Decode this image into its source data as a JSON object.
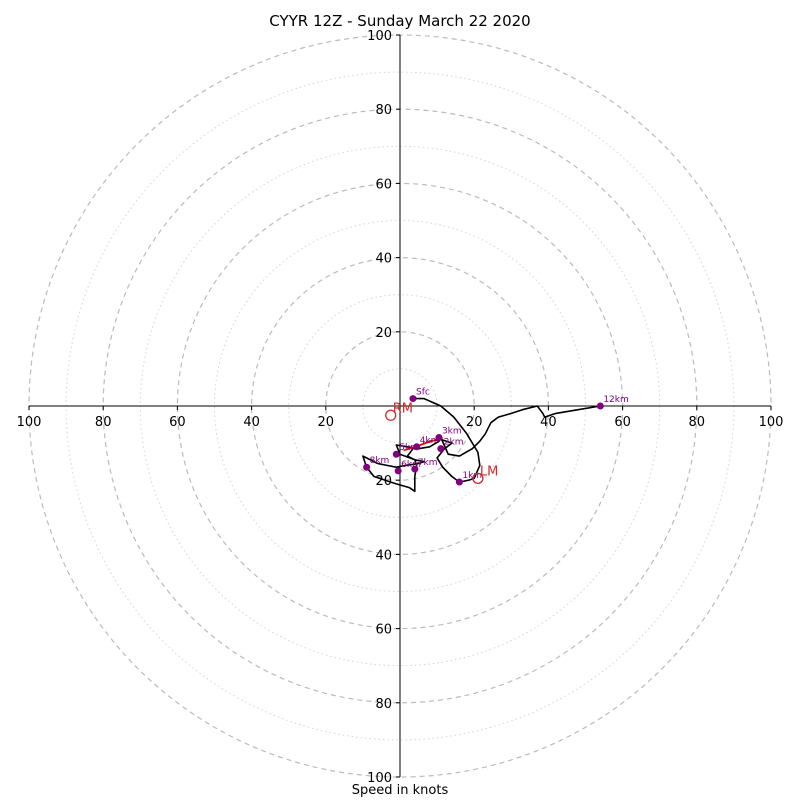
{
  "chart_data": {
    "type": "hodograph",
    "title": "CYYR 12Z - Sunday March 22 2020",
    "xlabel": "Speed in knots",
    "ring_max": 100,
    "ring_step": 10,
    "tick_labels_x": [
      "100",
      "80",
      "60",
      "40",
      "20",
      "20",
      "40",
      "60",
      "80",
      "100"
    ],
    "tick_labels_x_values": [
      -100,
      -80,
      -60,
      -40,
      -20,
      20,
      40,
      60,
      80,
      100
    ],
    "tick_labels_y": [
      "100",
      "80",
      "60",
      "40",
      "20",
      "20",
      "40",
      "60",
      "80",
      "100"
    ],
    "tick_labels_y_values": [
      100,
      80,
      60,
      40,
      20,
      -20,
      -40,
      -60,
      -80,
      -100
    ],
    "trace_uv": [
      [
        3.5,
        2.0
      ],
      [
        6.5,
        2.0
      ],
      [
        11.0,
        0.0
      ],
      [
        14.5,
        -3.0
      ],
      [
        18.0,
        -7.5
      ],
      [
        21.0,
        -12.5
      ],
      [
        21.5,
        -16.0
      ],
      [
        20.0,
        -19.5
      ],
      [
        18.5,
        -20.0
      ],
      [
        16.0,
        -20.5
      ],
      [
        14.0,
        -19.0
      ],
      [
        11.5,
        -16.5
      ],
      [
        10.0,
        -14.0
      ],
      [
        12.0,
        -11.5
      ],
      [
        14.0,
        -10.0
      ],
      [
        11.0,
        -9.0
      ],
      [
        8.0,
        -9.5
      ],
      [
        5.5,
        -10.5
      ],
      [
        3.5,
        -11.5
      ],
      [
        2.0,
        -13.5
      ],
      [
        4.0,
        -14.5
      ],
      [
        6.5,
        -15.0
      ],
      [
        5.0,
        -15.5
      ],
      [
        1.5,
        -16.0
      ],
      [
        -1.0,
        -16.5
      ],
      [
        -3.5,
        -16.0
      ],
      [
        -6.0,
        -15.5
      ],
      [
        -10.0,
        -13.5
      ],
      [
        -9.0,
        -16.5
      ],
      [
        -7.0,
        -19.0
      ],
      [
        -4.0,
        -20.0
      ],
      [
        -1.0,
        -21.0
      ],
      [
        2.5,
        -22.0
      ],
      [
        4.0,
        -23.0
      ],
      [
        4.0,
        -19.0
      ],
      [
        4.5,
        -16.0
      ],
      [
        4.0,
        -14.5
      ],
      [
        0.0,
        -13.0
      ],
      [
        -1.0,
        -10.5
      ],
      [
        2.0,
        -11.0
      ],
      [
        5.0,
        -11.5
      ],
      [
        8.0,
        -11.0
      ],
      [
        10.5,
        -9.5
      ],
      [
        11.0,
        -8.5
      ],
      [
        13.0,
        -13.0
      ],
      [
        16.0,
        -13.5
      ],
      [
        19.5,
        -11.5
      ],
      [
        21.5,
        -9.5
      ],
      [
        23.0,
        -7.5
      ],
      [
        24.5,
        -4.5
      ],
      [
        26.5,
        -3.0
      ],
      [
        30.0,
        -2.0
      ],
      [
        33.0,
        -1.0
      ],
      [
        37.0,
        0.0
      ],
      [
        38.5,
        -2.0
      ],
      [
        39.0,
        -3.0
      ],
      [
        42.0,
        -2.0
      ],
      [
        48.0,
        -1.0
      ],
      [
        54.0,
        0.0
      ]
    ],
    "storm_motion_uv": [
      [
        1.0,
        -12.0
      ],
      [
        11.5,
        -8.5
      ]
    ],
    "height_labels": [
      {
        "label": "Sfc",
        "u": 3.5,
        "v": 2.0
      },
      {
        "label": "1km",
        "u": 16.0,
        "v": -20.5
      },
      {
        "label": "2km",
        "u": 11.0,
        "v": -11.5
      },
      {
        "label": "3km",
        "u": 10.5,
        "v": -8.5
      },
      {
        "label": "4km",
        "u": 4.5,
        "v": -11.0
      },
      {
        "label": "5km",
        "u": -1.0,
        "v": -13.0
      },
      {
        "label": "6km",
        "u": -0.5,
        "v": -17.5
      },
      {
        "label": "7km",
        "u": 4.0,
        "v": -17.0
      },
      {
        "label": "8km",
        "u": -9.0,
        "v": -16.5
      },
      {
        "label": "12km",
        "u": 54.0,
        "v": 0.0
      }
    ],
    "bunkers": [
      {
        "label": "RM",
        "u": -2.5,
        "v": -2.5
      },
      {
        "label": "LM",
        "u": 21.0,
        "v": -19.5
      }
    ]
  },
  "colors": {
    "trace": "#000000",
    "storm_motion": "#ff0000",
    "height_marker": "#800080",
    "bunkers": "#d62728",
    "ring": "#bbbbbb"
  }
}
